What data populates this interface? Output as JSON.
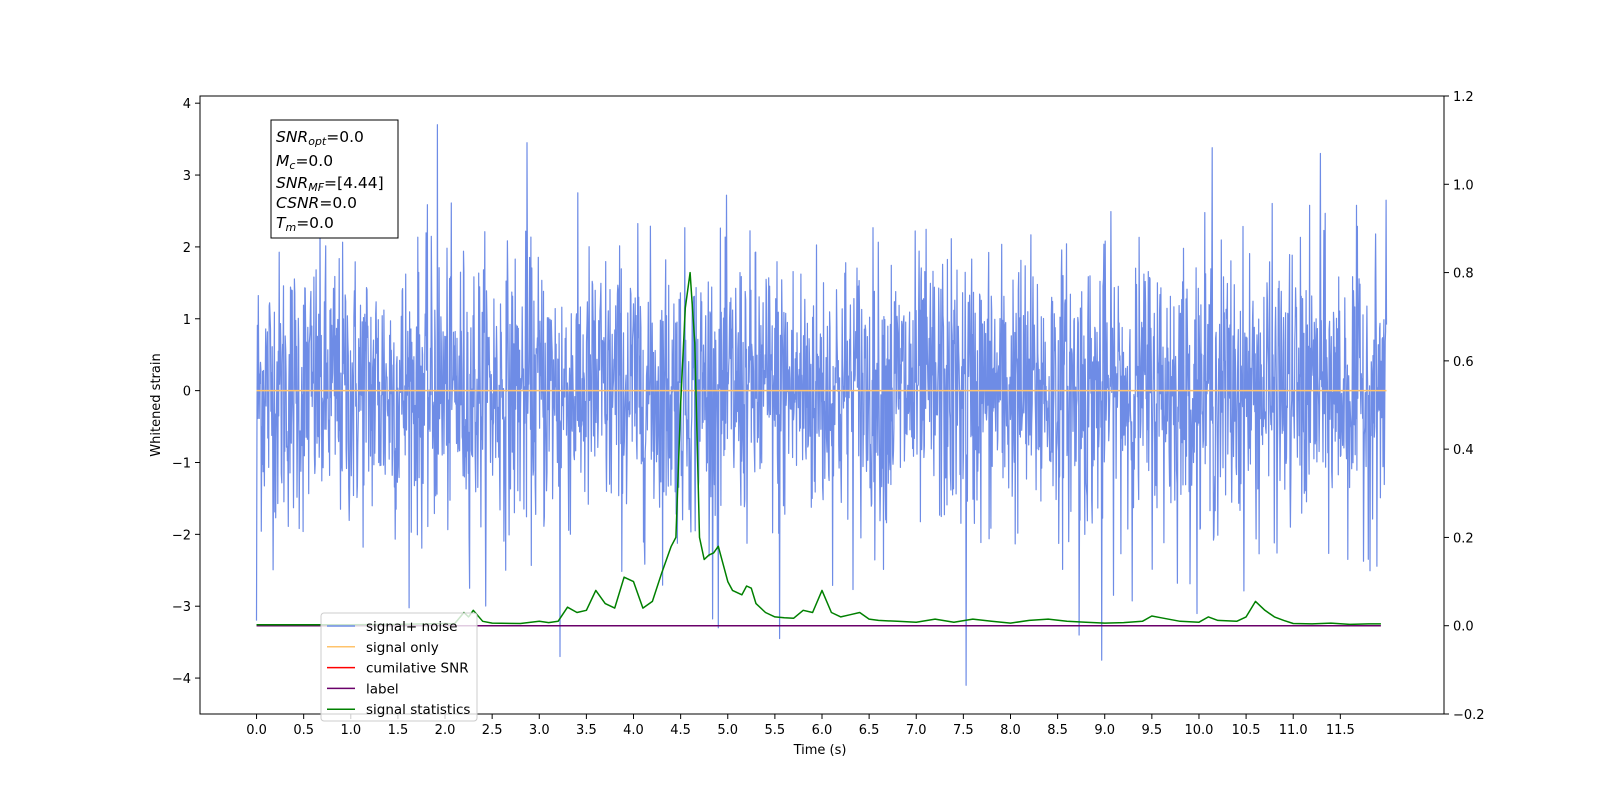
{
  "chart_data": {
    "type": "line",
    "xlabel": "Time (s)",
    "ylabel": "Whitened strain",
    "xlim": [
      -0.6,
      12.6
    ],
    "ylim": [
      -4.5,
      4.1
    ],
    "y2lim": [
      -0.2,
      1.2
    ],
    "grid": false,
    "legend_position": "lower-left",
    "x_ticks": [
      "0.0",
      "0.5",
      "1.0",
      "1.5",
      "2.0",
      "2.5",
      "3.0",
      "3.5",
      "4.0",
      "4.5",
      "5.0",
      "5.5",
      "6.0",
      "6.5",
      "7.0",
      "7.5",
      "8.0",
      "8.5",
      "9.0",
      "9.5",
      "10.0",
      "10.5",
      "11.0",
      "11.5"
    ],
    "y_ticks": [
      "4",
      "3",
      "2",
      "1",
      "0",
      "−1",
      "−2",
      "−3",
      "−4"
    ],
    "y2_ticks": [
      "1.2",
      "1.0",
      "0.8",
      "0.6",
      "0.4",
      "0.2",
      "0.0",
      "−0.2"
    ],
    "legend": [
      {
        "label": "signal+ noise",
        "color": "#6e8ce6"
      },
      {
        "label": "signal only",
        "color": "#ffc36b"
      },
      {
        "label": "cumilative SNR",
        "color": "#ff0000"
      },
      {
        "label": "label",
        "color": "#6a006a"
      },
      {
        "label": "signal statistics",
        "color": "#008000"
      }
    ],
    "info_box": {
      "snr_opt": {
        "main": "SNR",
        "sub": "opt",
        "value": "=0.0"
      },
      "mc": {
        "main": "M",
        "sub": "c",
        "value": "=0.0"
      },
      "snr_mf": {
        "main": "SNR",
        "sub": "MF",
        "value": "=[4.44]"
      },
      "csnr": {
        "main": "CSNR",
        "sub": "",
        "value": "=0.0"
      },
      "tm": {
        "main": "T",
        "sub": "m",
        "value": "=0.0"
      }
    },
    "series": [
      {
        "name": "signal+ noise",
        "axis": "left",
        "color": "#6e8ce6",
        "t_start": 0.0,
        "t_end": 11.99,
        "typical_range": [
          -1.5,
          1.5
        ],
        "envelope_max": 3.7,
        "envelope_min": -4.1,
        "notable_spikes": [
          [
            0.0,
            -3.2
          ],
          [
            1.92,
            3.7
          ],
          [
            2.87,
            3.45
          ],
          [
            3.22,
            -3.7
          ],
          [
            4.9,
            -3.3
          ],
          [
            5.55,
            -3.45
          ],
          [
            7.53,
            -4.1
          ],
          [
            8.73,
            -3.4
          ],
          [
            8.97,
            -3.75
          ],
          [
            10.14,
            3.38
          ],
          [
            11.29,
            3.3
          ]
        ]
      },
      {
        "name": "signal only",
        "axis": "left",
        "color": "#ffc36b",
        "x": [
          0.0,
          11.99
        ],
        "y": [
          0.0,
          0.0
        ]
      },
      {
        "name": "label",
        "axis": "right",
        "color": "#6a006a",
        "x": [
          0.0,
          11.93
        ],
        "y": [
          0.0,
          0.0
        ]
      },
      {
        "name": "signal statistics",
        "axis": "right",
        "color": "#008000",
        "x": [
          0.0,
          0.5,
          1.0,
          1.5,
          2.0,
          2.1,
          2.2,
          2.25,
          2.3,
          2.4,
          2.5,
          2.8,
          3.0,
          3.1,
          3.2,
          3.3,
          3.4,
          3.5,
          3.6,
          3.7,
          3.8,
          3.9,
          4.0,
          4.1,
          4.2,
          4.3,
          4.4,
          4.45,
          4.5,
          4.55,
          4.6,
          4.65,
          4.7,
          4.75,
          4.8,
          4.85,
          4.9,
          5.0,
          5.05,
          5.15,
          5.2,
          5.25,
          5.3,
          5.4,
          5.5,
          5.6,
          5.7,
          5.8,
          5.9,
          6.0,
          6.1,
          6.2,
          6.3,
          6.4,
          6.5,
          6.6,
          6.8,
          7.0,
          7.2,
          7.4,
          7.6,
          7.8,
          8.0,
          8.2,
          8.4,
          8.6,
          8.8,
          9.0,
          9.2,
          9.4,
          9.5,
          9.6,
          9.8,
          10.0,
          10.1,
          10.2,
          10.4,
          10.5,
          10.6,
          10.7,
          10.8,
          10.9,
          11.0,
          11.2,
          11.4,
          11.6,
          11.8,
          11.93
        ],
        "y": [
          0.002,
          0.002,
          0.002,
          0.003,
          0.005,
          0.004,
          0.03,
          0.02,
          0.035,
          0.01,
          0.006,
          0.005,
          0.01,
          0.007,
          0.01,
          0.042,
          0.03,
          0.035,
          0.08,
          0.05,
          0.04,
          0.11,
          0.1,
          0.04,
          0.055,
          0.12,
          0.18,
          0.2,
          0.5,
          0.72,
          0.8,
          0.64,
          0.2,
          0.15,
          0.16,
          0.165,
          0.18,
          0.1,
          0.08,
          0.07,
          0.09,
          0.085,
          0.05,
          0.03,
          0.02,
          0.018,
          0.017,
          0.035,
          0.03,
          0.08,
          0.03,
          0.02,
          0.025,
          0.03,
          0.015,
          0.012,
          0.01,
          0.008,
          0.015,
          0.008,
          0.015,
          0.01,
          0.006,
          0.012,
          0.015,
          0.01,
          0.008,
          0.006,
          0.007,
          0.01,
          0.022,
          0.018,
          0.01,
          0.008,
          0.02,
          0.012,
          0.01,
          0.02,
          0.055,
          0.035,
          0.02,
          0.012,
          0.005,
          0.004,
          0.006,
          0.003,
          0.004,
          0.004
        ]
      }
    ]
  }
}
